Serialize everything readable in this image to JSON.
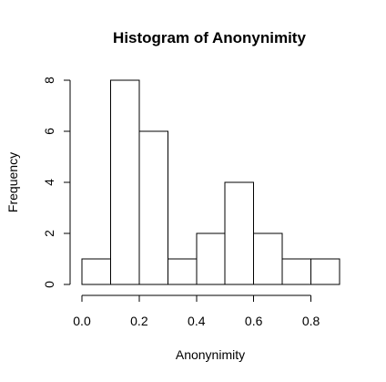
{
  "chart_data": {
    "type": "bar",
    "title": "Histogram of Anonynimity",
    "xlabel": "Anonynimity",
    "ylabel": "Frequency",
    "bins": [
      {
        "start": 0.0,
        "end": 0.1,
        "count": 1
      },
      {
        "start": 0.1,
        "end": 0.2,
        "count": 8
      },
      {
        "start": 0.2,
        "end": 0.3,
        "count": 6
      },
      {
        "start": 0.3,
        "end": 0.4,
        "count": 1
      },
      {
        "start": 0.4,
        "end": 0.5,
        "count": 2
      },
      {
        "start": 0.5,
        "end": 0.6,
        "count": 4
      },
      {
        "start": 0.6,
        "end": 0.7,
        "count": 2
      },
      {
        "start": 0.7,
        "end": 0.8,
        "count": 1
      },
      {
        "start": 0.8,
        "end": 0.9,
        "count": 1
      }
    ],
    "xlim": [
      0.0,
      0.9
    ],
    "ylim": [
      0,
      8
    ],
    "x_ticks": [
      0.0,
      0.2,
      0.4,
      0.6,
      0.8
    ],
    "x_tick_labels": [
      "0.0",
      "0.2",
      "0.4",
      "0.6",
      "0.8"
    ],
    "y_ticks": [
      0,
      2,
      4,
      6,
      8
    ],
    "y_tick_labels": [
      "0",
      "2",
      "4",
      "6",
      "8"
    ],
    "grid": false,
    "colors": {
      "bar_fill": "#ffffff",
      "bar_stroke": "#000000",
      "axis": "#000000"
    }
  }
}
